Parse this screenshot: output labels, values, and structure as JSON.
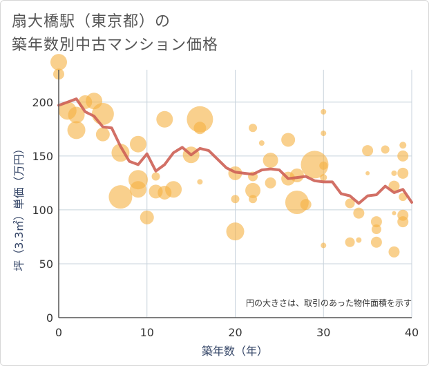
{
  "title_line1": "扇大橋駅（東京都）の",
  "title_line2": "築年数別中古マンション価格",
  "chart_data": {
    "type": "scatter",
    "xlabel": "築年数（年）",
    "ylabel": "坪（3.3㎡）単価（万円）",
    "note": "円の大きさは、取引のあった物件面積を示す",
    "xlim": [
      0,
      40
    ],
    "ylim": [
      0,
      230
    ],
    "xticks": [
      0,
      10,
      20,
      30,
      40
    ],
    "yticks": [
      0,
      50,
      100,
      150,
      200
    ],
    "grid": true,
    "colors": {
      "bubble": "#f5b041",
      "line": "#cd6155"
    },
    "bubbles": [
      {
        "x": 0,
        "y": 237,
        "s": 12
      },
      {
        "x": 0,
        "y": 226,
        "s": 8
      },
      {
        "x": 1,
        "y": 192,
        "s": 13
      },
      {
        "x": 2,
        "y": 188,
        "s": 12
      },
      {
        "x": 2,
        "y": 174,
        "s": 13
      },
      {
        "x": 3,
        "y": 200,
        "s": 10
      },
      {
        "x": 4,
        "y": 201,
        "s": 12
      },
      {
        "x": 5,
        "y": 189,
        "s": 16
      },
      {
        "x": 5,
        "y": 170,
        "s": 10
      },
      {
        "x": 7,
        "y": 153,
        "s": 13
      },
      {
        "x": 7,
        "y": 112,
        "s": 17
      },
      {
        "x": 9,
        "y": 161,
        "s": 12
      },
      {
        "x": 9,
        "y": 128,
        "s": 14
      },
      {
        "x": 9,
        "y": 119,
        "s": 12
      },
      {
        "x": 10,
        "y": 93,
        "s": 10
      },
      {
        "x": 11,
        "y": 131,
        "s": 6
      },
      {
        "x": 11,
        "y": 117,
        "s": 10
      },
      {
        "x": 12,
        "y": 184,
        "s": 12
      },
      {
        "x": 12,
        "y": 116,
        "s": 10
      },
      {
        "x": 13,
        "y": 119,
        "s": 12
      },
      {
        "x": 15,
        "y": 151,
        "s": 12
      },
      {
        "x": 16,
        "y": 184,
        "s": 19
      },
      {
        "x": 16,
        "y": 176,
        "s": 9
      },
      {
        "x": 16,
        "y": 126,
        "s": 4
      },
      {
        "x": 20,
        "y": 134,
        "s": 10
      },
      {
        "x": 20,
        "y": 110,
        "s": 6
      },
      {
        "x": 20,
        "y": 80,
        "s": 13
      },
      {
        "x": 22,
        "y": 176,
        "s": 6
      },
      {
        "x": 22,
        "y": 118,
        "s": 11
      },
      {
        "x": 22,
        "y": 110,
        "s": 6
      },
      {
        "x": 22,
        "y": 131,
        "s": 7
      },
      {
        "x": 23,
        "y": 162,
        "s": 4
      },
      {
        "x": 24,
        "y": 146,
        "s": 11
      },
      {
        "x": 24,
        "y": 125,
        "s": 8
      },
      {
        "x": 26,
        "y": 165,
        "s": 10
      },
      {
        "x": 26,
        "y": 129,
        "s": 10
      },
      {
        "x": 27,
        "y": 132,
        "s": 10
      },
      {
        "x": 27,
        "y": 107,
        "s": 17
      },
      {
        "x": 28,
        "y": 105,
        "s": 8
      },
      {
        "x": 29,
        "y": 142,
        "s": 20
      },
      {
        "x": 30,
        "y": 191,
        "s": 4
      },
      {
        "x": 30,
        "y": 171,
        "s": 4
      },
      {
        "x": 30,
        "y": 141,
        "s": 6
      },
      {
        "x": 30,
        "y": 130,
        "s": 5
      },
      {
        "x": 30,
        "y": 67,
        "s": 4
      },
      {
        "x": 33,
        "y": 106,
        "s": 7
      },
      {
        "x": 33,
        "y": 70,
        "s": 7
      },
      {
        "x": 34,
        "y": 72,
        "s": 4
      },
      {
        "x": 34,
        "y": 97,
        "s": 8
      },
      {
        "x": 35,
        "y": 155,
        "s": 8
      },
      {
        "x": 35,
        "y": 134,
        "s": 3
      },
      {
        "x": 36,
        "y": 89,
        "s": 8
      },
      {
        "x": 36,
        "y": 82,
        "s": 7
      },
      {
        "x": 36,
        "y": 70,
        "s": 8
      },
      {
        "x": 37,
        "y": 156,
        "s": 6
      },
      {
        "x": 38,
        "y": 134,
        "s": 4
      },
      {
        "x": 38,
        "y": 122,
        "s": 8
      },
      {
        "x": 38,
        "y": 97,
        "s": 3
      },
      {
        "x": 38,
        "y": 61,
        "s": 8
      },
      {
        "x": 39,
        "y": 160,
        "s": 5
      },
      {
        "x": 39,
        "y": 150,
        "s": 8
      },
      {
        "x": 39,
        "y": 134,
        "s": 8
      },
      {
        "x": 39,
        "y": 112,
        "s": 6
      },
      {
        "x": 39,
        "y": 95,
        "s": 8
      },
      {
        "x": 39,
        "y": 89,
        "s": 8
      }
    ],
    "line": {
      "x": [
        0,
        1,
        2,
        3,
        4,
        5,
        6,
        7,
        8,
        9,
        10,
        11,
        12,
        13,
        14,
        15,
        16,
        17,
        18,
        19,
        20,
        21,
        22,
        23,
        24,
        25,
        26,
        27,
        28,
        29,
        30,
        31,
        32,
        33,
        34,
        35,
        36,
        37,
        38,
        39,
        40
      ],
      "y": [
        197,
        200,
        203,
        191,
        187,
        177,
        176,
        159,
        145,
        142,
        152,
        136,
        142,
        153,
        158,
        151,
        157,
        155,
        147,
        139,
        135,
        134,
        133,
        137,
        138,
        137,
        129,
        130,
        131,
        127,
        126,
        126,
        115,
        113,
        106,
        113,
        114,
        122,
        116,
        119,
        107
      ]
    }
  }
}
